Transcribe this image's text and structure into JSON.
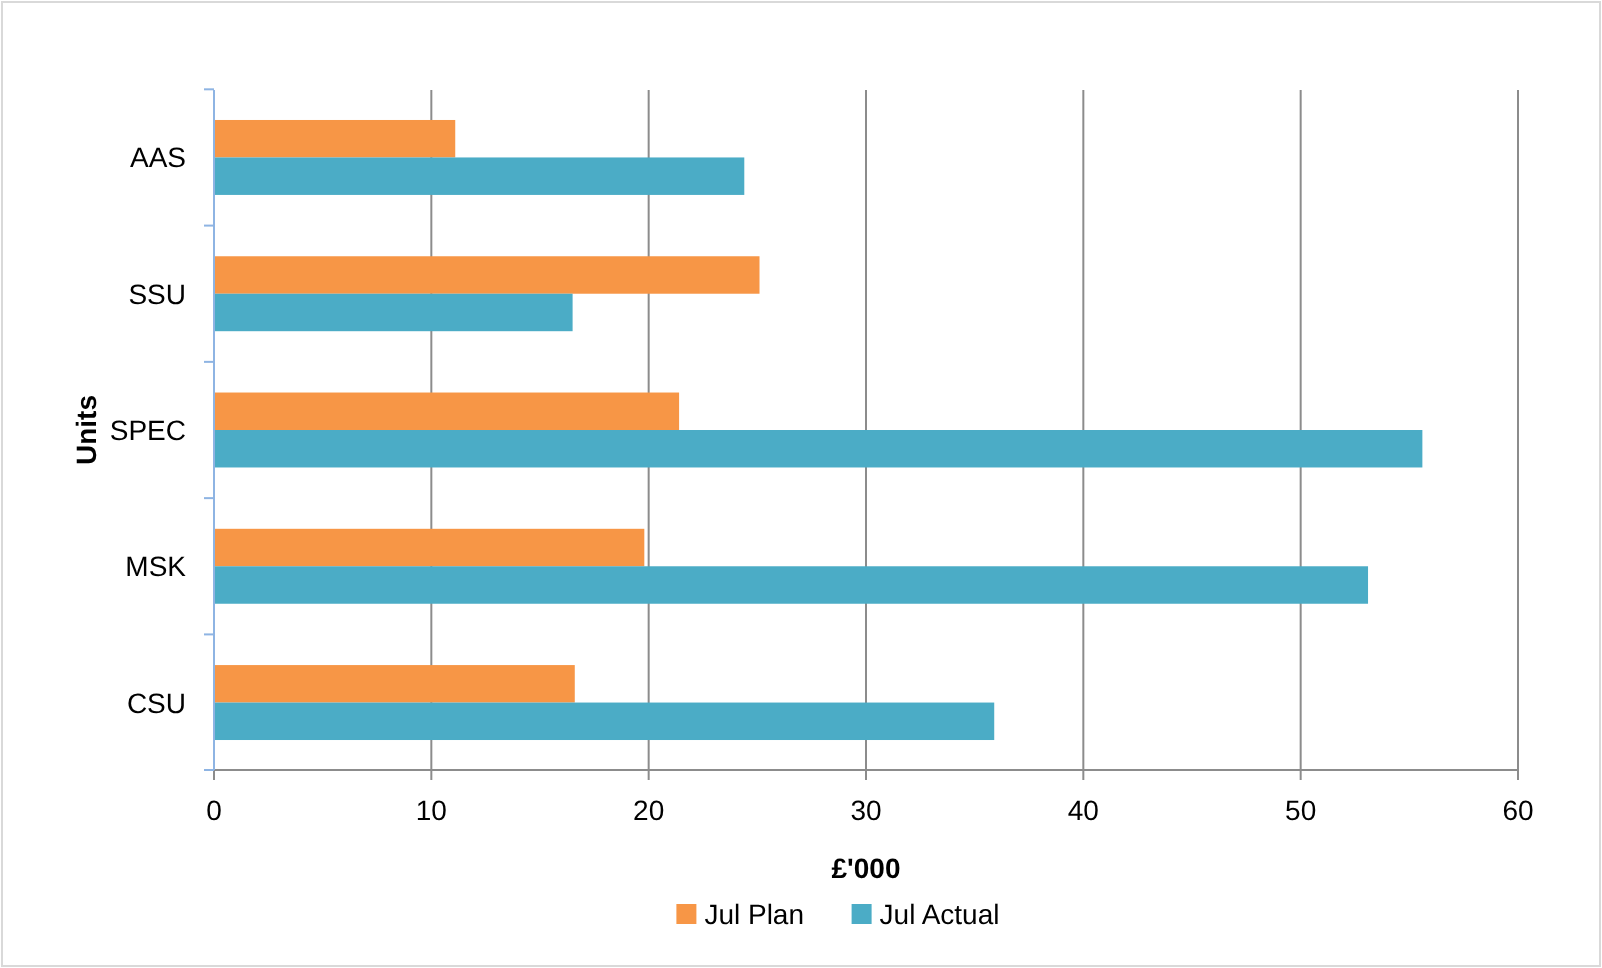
{
  "chart_data": {
    "type": "bar",
    "orientation": "horizontal",
    "xlabel": "£'000",
    "ylabel": "Units",
    "categories": [
      "AAS",
      "SSU",
      "SPEC",
      "MSK",
      "CSU"
    ],
    "series": [
      {
        "name": "Jul Plan",
        "color": "#f79646",
        "values": [
          11.1,
          25.1,
          21.4,
          19.8,
          16.6
        ]
      },
      {
        "name": "Jul Actual",
        "color": "#4bacc6",
        "values": [
          24.4,
          16.5,
          55.6,
          53.1,
          35.9
        ]
      }
    ],
    "xlim": [
      0,
      60
    ],
    "xticks": [
      0,
      10,
      20,
      30,
      40,
      50,
      60
    ],
    "grid": "x",
    "legend": "bottom"
  }
}
